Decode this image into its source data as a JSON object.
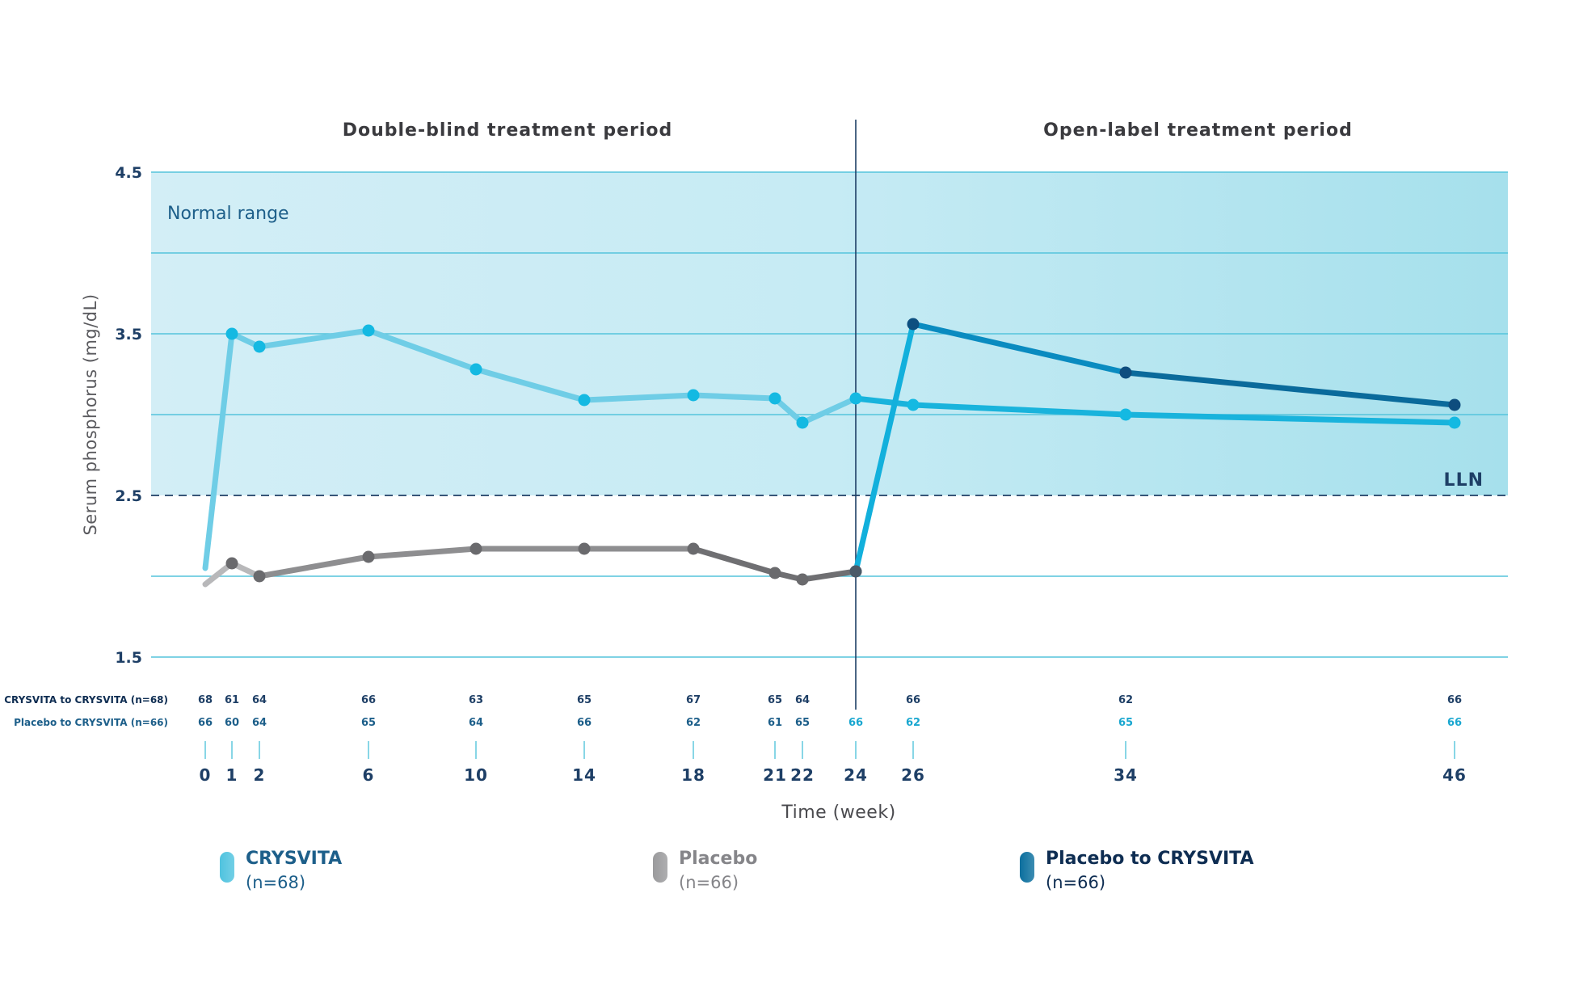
{
  "chart_data": {
    "type": "line",
    "xlabel": "Time (week)",
    "ylabel": "Serum phosphorus (mg/dL)",
    "ylim": [
      1.5,
      4.5
    ],
    "y_ticks": [
      "4.5",
      "3.5",
      "2.5",
      "1.5"
    ],
    "x_ticks": [
      0,
      1,
      2,
      6,
      10,
      14,
      18,
      21,
      22,
      24,
      26,
      34,
      46
    ],
    "periods": [
      "Double-blind treatment period",
      "Open-label treatment period"
    ],
    "period_divider_week": 24,
    "normal_range_label": "Normal range",
    "normal_range": [
      2.5,
      4.5
    ],
    "lln_label": "LLN",
    "lln_value": 2.5,
    "series": [
      {
        "name": "CRYSVITA",
        "n_label": "(n=68)",
        "color": "#5ec8e2",
        "x": [
          0,
          1,
          2,
          6,
          10,
          14,
          18,
          21,
          22,
          24,
          26,
          34,
          46
        ],
        "y": [
          2.05,
          3.5,
          3.42,
          3.52,
          3.28,
          3.09,
          3.12,
          3.1,
          2.95,
          3.1,
          3.06,
          3.0,
          2.95
        ]
      },
      {
        "name": "Placebo",
        "n_label": "(n=66)",
        "color": "#8a8a8c",
        "x": [
          0,
          1,
          2,
          6,
          10,
          14,
          18,
          21,
          22,
          24
        ],
        "y": [
          1.95,
          2.08,
          2.0,
          2.12,
          2.17,
          2.17,
          2.17,
          2.02,
          1.98,
          2.03
        ]
      },
      {
        "name": "Placebo to CRYSVITA",
        "n_label": "(n=66)",
        "color": "#0a7bb0",
        "x": [
          24,
          26,
          34,
          46
        ],
        "y": [
          2.03,
          3.56,
          3.26,
          3.06
        ]
      }
    ],
    "n_rows": [
      {
        "label": "CRYSVITA to CRYSVITA (n=68)",
        "weeks": [
          0,
          1,
          2,
          6,
          10,
          14,
          18,
          21,
          22,
          26,
          34,
          46
        ],
        "values": [
          "68",
          "61",
          "64",
          "66",
          "63",
          "65",
          "67",
          "65",
          "64",
          "66",
          "62",
          "66"
        ]
      },
      {
        "label": "Placebo to CRYSVITA (n=66)",
        "weeks": [
          0,
          1,
          2,
          6,
          10,
          14,
          18,
          21,
          22,
          24,
          26,
          34,
          46
        ],
        "values": [
          "66",
          "60",
          "64",
          "65",
          "64",
          "66",
          "62",
          "61",
          "65",
          "66",
          "62",
          "65",
          "66"
        ]
      }
    ]
  },
  "legend": [
    {
      "name": "CRYSVITA",
      "n": "(n=68)",
      "color": "#4fc3df",
      "text_color": "#1d5f8a"
    },
    {
      "name": "Placebo",
      "n": "(n=66)",
      "color": "#9a9a9c",
      "text_color": "#858589"
    },
    {
      "name": "Placebo to CRYSVITA",
      "n": "(n=66)",
      "color": "#0b6f9e",
      "text_color": "#0e2d52"
    }
  ]
}
